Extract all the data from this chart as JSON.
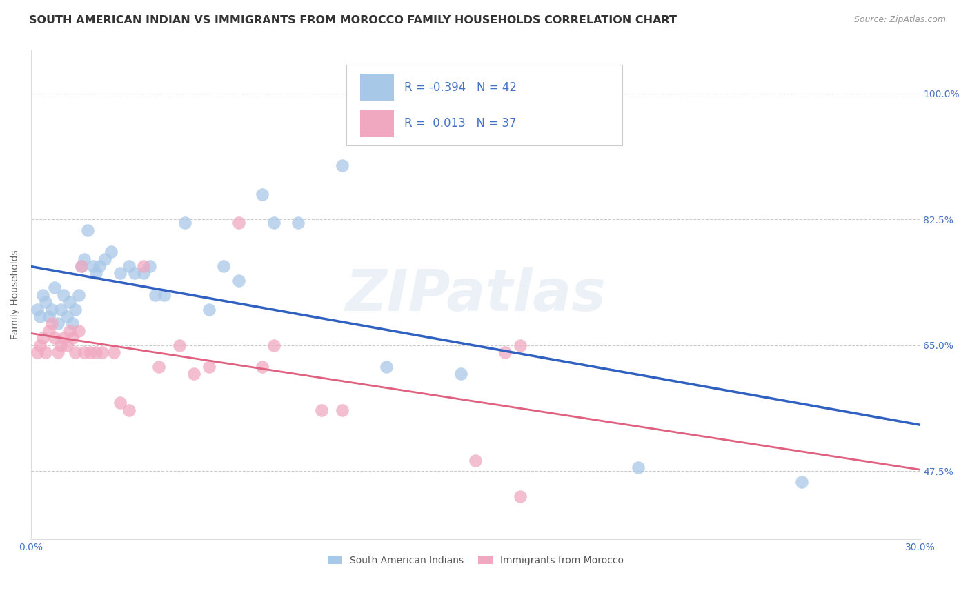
{
  "title": "SOUTH AMERICAN INDIAN VS IMMIGRANTS FROM MOROCCO FAMILY HOUSEHOLDS CORRELATION CHART",
  "source": "Source: ZipAtlas.com",
  "ylabel": "Family Households",
  "xlim": [
    0.0,
    0.3
  ],
  "ylim": [
    0.38,
    1.06
  ],
  "xticks": [
    0.0,
    0.05,
    0.1,
    0.15,
    0.2,
    0.25,
    0.3
  ],
  "xticklabels": [
    "0.0%",
    "",
    "",
    "",
    "",
    "",
    "30.0%"
  ],
  "yticks": [
    0.475,
    0.65,
    0.825,
    1.0
  ],
  "yticklabels": [
    "47.5%",
    "65.0%",
    "82.5%",
    "100.0%"
  ],
  "blue_color": "#a8c8e8",
  "pink_color": "#f0a8c0",
  "blue_line_color": "#3060c0",
  "pink_line_color": "#e06080",
  "legend_R_blue": "-0.394",
  "legend_N_blue": "42",
  "legend_R_pink": "0.013",
  "legend_N_pink": "37",
  "legend_label_blue": "South American Indians",
  "legend_label_pink": "Immigrants from Morocco",
  "blue_scatter_x": [
    0.002,
    0.003,
    0.004,
    0.005,
    0.006,
    0.007,
    0.008,
    0.009,
    0.01,
    0.011,
    0.012,
    0.013,
    0.014,
    0.015,
    0.016,
    0.017,
    0.018,
    0.019,
    0.021,
    0.022,
    0.023,
    0.025,
    0.027,
    0.03,
    0.033,
    0.035,
    0.038,
    0.04,
    0.042,
    0.045,
    0.052,
    0.06,
    0.065,
    0.07,
    0.078,
    0.082,
    0.09,
    0.105,
    0.12,
    0.145,
    0.205,
    0.26
  ],
  "blue_scatter_y": [
    0.7,
    0.69,
    0.72,
    0.71,
    0.69,
    0.7,
    0.73,
    0.68,
    0.7,
    0.72,
    0.69,
    0.71,
    0.68,
    0.7,
    0.72,
    0.76,
    0.77,
    0.81,
    0.76,
    0.75,
    0.76,
    0.77,
    0.78,
    0.75,
    0.76,
    0.75,
    0.75,
    0.76,
    0.72,
    0.72,
    0.82,
    0.7,
    0.76,
    0.74,
    0.86,
    0.82,
    0.82,
    0.9,
    0.62,
    0.61,
    0.48,
    0.46
  ],
  "pink_scatter_x": [
    0.002,
    0.003,
    0.004,
    0.005,
    0.006,
    0.007,
    0.008,
    0.009,
    0.01,
    0.011,
    0.012,
    0.013,
    0.014,
    0.015,
    0.016,
    0.017,
    0.018,
    0.02,
    0.022,
    0.024,
    0.028,
    0.03,
    0.033,
    0.038,
    0.043,
    0.05,
    0.055,
    0.06,
    0.07,
    0.078,
    0.082,
    0.098,
    0.105,
    0.15,
    0.16,
    0.165,
    0.165
  ],
  "pink_scatter_y": [
    0.64,
    0.65,
    0.66,
    0.64,
    0.67,
    0.68,
    0.66,
    0.64,
    0.65,
    0.66,
    0.65,
    0.67,
    0.66,
    0.64,
    0.67,
    0.76,
    0.64,
    0.64,
    0.64,
    0.64,
    0.64,
    0.57,
    0.56,
    0.76,
    0.62,
    0.65,
    0.61,
    0.62,
    0.82,
    0.62,
    0.65,
    0.56,
    0.56,
    0.49,
    0.64,
    0.65,
    0.44
  ],
  "background_color": "#ffffff",
  "grid_color": "#cccccc",
  "watermark": "ZIPatlas",
  "title_fontsize": 11.5,
  "axis_label_fontsize": 10,
  "tick_fontsize": 10,
  "source_fontsize": 9
}
